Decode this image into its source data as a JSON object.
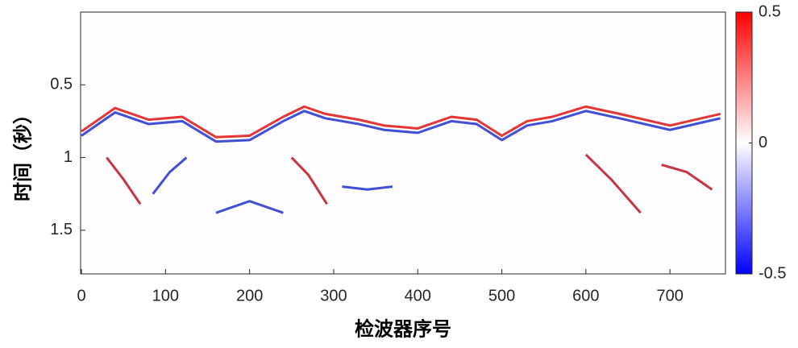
{
  "chart_data": {
    "type": "heatmap",
    "xlabel": "检波器序号",
    "ylabel": "时间（秒）",
    "xlim": [
      -1,
      766
    ],
    "xticks": [
      0,
      100,
      200,
      300,
      400,
      500,
      600,
      700
    ],
    "ylim": [
      0,
      1.8
    ],
    "yticks": [
      0.5,
      1,
      1.5
    ],
    "y_reversed": true,
    "clim": [
      -0.5,
      0.5
    ],
    "cticks": [
      0.5,
      0,
      -0.5
    ],
    "colormap": [
      "#0000ff",
      "#ffffff",
      "#ff0000"
    ],
    "series": [
      {
        "color": "#e01010",
        "x": [
          0,
          40,
          80,
          120,
          160,
          200,
          240,
          265,
          290,
          330,
          360,
          400,
          440,
          470,
          500,
          530,
          560,
          600,
          640,
          700,
          760
        ],
        "values": [
          0.82,
          0.66,
          0.74,
          0.72,
          0.86,
          0.85,
          0.72,
          0.65,
          0.7,
          0.74,
          0.78,
          0.8,
          0.72,
          0.74,
          0.85,
          0.75,
          0.72,
          0.65,
          0.7,
          0.78,
          0.7
        ]
      },
      {
        "color": "#2030d0",
        "x": [
          0,
          40,
          80,
          120,
          160,
          200,
          240,
          265,
          290,
          330,
          360,
          400,
          440,
          470,
          500,
          530,
          560,
          600,
          640,
          700,
          760
        ],
        "values": [
          0.85,
          0.69,
          0.77,
          0.75,
          0.89,
          0.88,
          0.75,
          0.68,
          0.73,
          0.77,
          0.81,
          0.83,
          0.75,
          0.77,
          0.88,
          0.78,
          0.75,
          0.68,
          0.73,
          0.81,
          0.73
        ]
      },
      {
        "color": "#c01020",
        "x": [
          30,
          50,
          70
        ],
        "values": [
          1.0,
          1.15,
          1.32
        ]
      },
      {
        "color": "#c01020",
        "x": [
          250,
          270,
          292
        ],
        "values": [
          1.0,
          1.12,
          1.32
        ]
      },
      {
        "color": "#c01020",
        "x": [
          600,
          630,
          665
        ],
        "values": [
          0.98,
          1.15,
          1.38
        ]
      },
      {
        "color": "#2030d0",
        "x": [
          85,
          105,
          125
        ],
        "values": [
          1.25,
          1.1,
          1.0
        ]
      },
      {
        "color": "#2030d0",
        "x": [
          310,
          340,
          370
        ],
        "values": [
          1.2,
          1.22,
          1.2
        ]
      },
      {
        "color": "#c01020",
        "x": [
          690,
          720,
          750
        ],
        "values": [
          1.05,
          1.1,
          1.22
        ]
      },
      {
        "color": "#2030d0",
        "x": [
          160,
          200,
          240
        ],
        "values": [
          1.38,
          1.3,
          1.38
        ]
      }
    ]
  }
}
